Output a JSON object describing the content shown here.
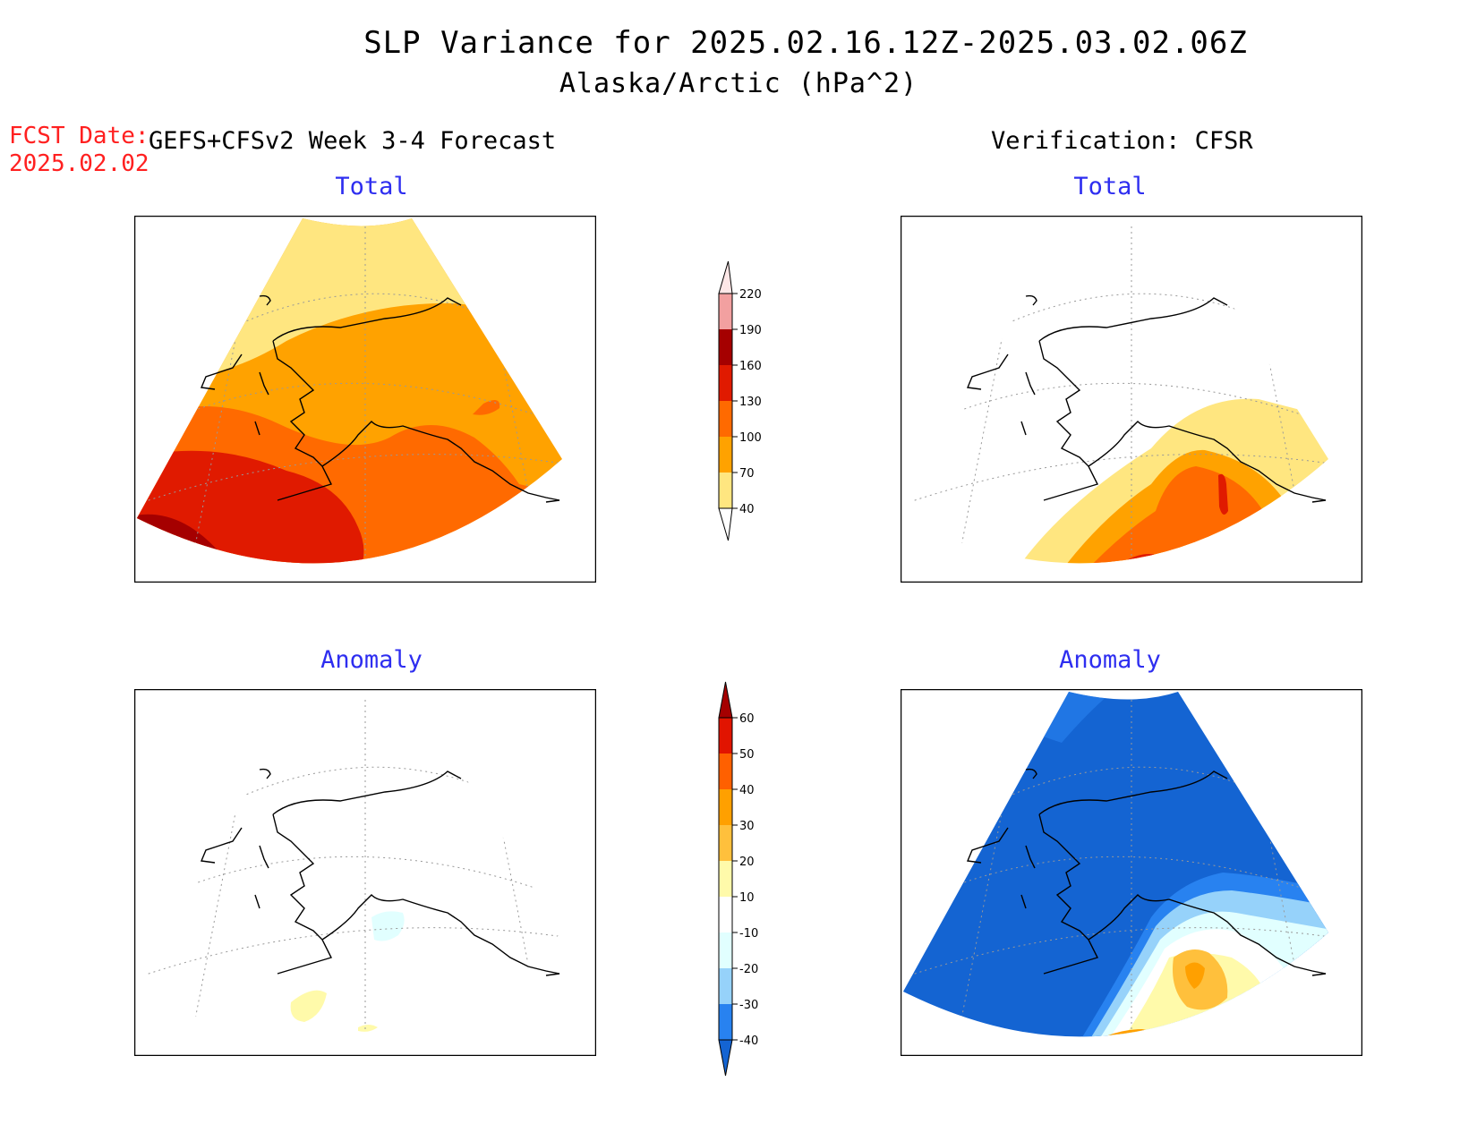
{
  "figure": {
    "title": "SLP Variance for 2025.02.16.12Z-2025.03.02.06Z",
    "subtitle": "Alaska/Arctic (hPa^2)",
    "fcst_label": "FCST Date:",
    "fcst_date": "2025.02.02"
  },
  "columns": {
    "left": "GEFS+CFSv2 Week 3-4 Forecast",
    "right": "Verification: CFSR"
  },
  "panels": [
    {
      "id": "forecast-total",
      "title": "Total"
    },
    {
      "id": "verification-total",
      "title": "Total"
    },
    {
      "id": "forecast-anomaly",
      "title": "Anomaly"
    },
    {
      "id": "verification-anomaly",
      "title": "Anomaly"
    }
  ],
  "colorbars": {
    "total": {
      "ticks": [
        "40",
        "70",
        "100",
        "130",
        "160",
        "190",
        "220"
      ],
      "colors": [
        "#ffe680",
        "#ffa200",
        "#ff6a00",
        "#e01a00",
        "#a50000",
        "#f2a0a0",
        "#fde7e7"
      ]
    },
    "anomaly": {
      "ticks": [
        "-40",
        "-30",
        "-20",
        "-10",
        "10",
        "20",
        "30",
        "40",
        "50",
        "60"
      ],
      "colors": [
        "#1464d2",
        "#2882f0",
        "#96d2fa",
        "#e1ffff",
        "#ffffff",
        "#fffaaa",
        "#ffc03c",
        "#ffa000",
        "#ff6000",
        "#e11400",
        "#a50000"
      ]
    }
  },
  "palette": {
    "panel_title": "#2e2ef0",
    "fcst_date": "#ff2020"
  }
}
